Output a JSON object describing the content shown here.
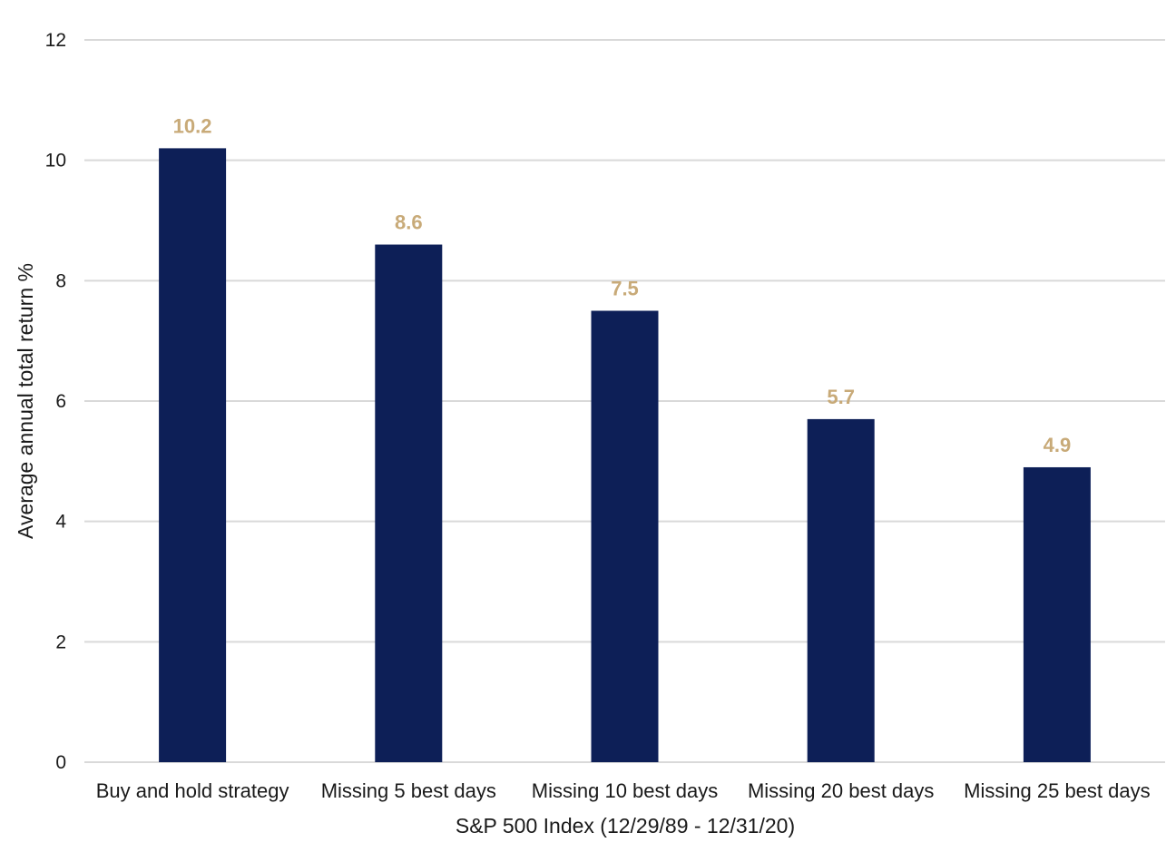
{
  "chart_data": {
    "type": "bar",
    "categories": [
      "Buy and hold strategy",
      "Missing 5 best days",
      "Missing 10 best days",
      "Missing 20 best days",
      "Missing 25 best days"
    ],
    "values": [
      10.2,
      8.6,
      7.5,
      5.7,
      4.9
    ],
    "data_labels": [
      "10.2",
      "8.6",
      "7.5",
      "5.7",
      "4.9"
    ],
    "title": "",
    "xlabel": "S&P 500 Index (12/29/89 - 12/31/20)",
    "ylabel": "Average annual total return %",
    "ylim": [
      0,
      12
    ],
    "yticks": [
      "0",
      "2",
      "4",
      "6",
      "8",
      "10",
      "12"
    ],
    "grid": "horizontal",
    "legend": "none",
    "colors": {
      "bar": "#0d1f57",
      "data_label": "#c8aa78",
      "grid": "#d9d9d9"
    }
  }
}
